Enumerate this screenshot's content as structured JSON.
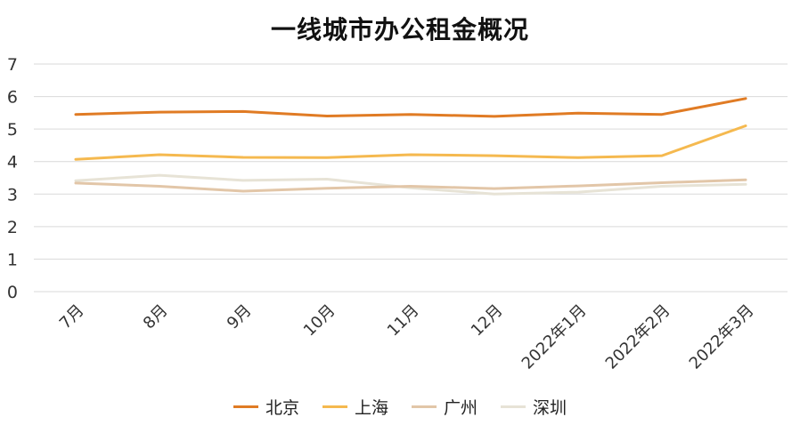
{
  "chart_data": {
    "type": "line",
    "title": "一线城市办公租金概况",
    "categories": [
      "7月",
      "8月",
      "9月",
      "10月",
      "11月",
      "12月",
      "2022年1月",
      "2022年2月",
      "2022年3月"
    ],
    "ylim": [
      0,
      7
    ],
    "yticks": [
      "0",
      "1",
      "2",
      "3",
      "4",
      "5",
      "6",
      "7"
    ],
    "grid": true,
    "legend_position": "bottom",
    "series": [
      {
        "name": "北京",
        "color": "#E07B24",
        "values": [
          5.45,
          5.52,
          5.54,
          5.4,
          5.45,
          5.39,
          5.49,
          5.45,
          5.94
        ]
      },
      {
        "name": "上海",
        "color": "#F5B94F",
        "values": [
          4.07,
          4.21,
          4.13,
          4.12,
          4.21,
          4.18,
          4.12,
          4.18,
          5.1
        ]
      },
      {
        "name": "广州",
        "color": "#E2C6A8",
        "values": [
          3.34,
          3.24,
          3.09,
          3.18,
          3.24,
          3.17,
          3.25,
          3.35,
          3.44
        ]
      },
      {
        "name": "深圳",
        "color": "#E7E3D6",
        "values": [
          3.41,
          3.58,
          3.42,
          3.46,
          3.19,
          3.0,
          3.06,
          3.24,
          3.3
        ]
      }
    ]
  }
}
